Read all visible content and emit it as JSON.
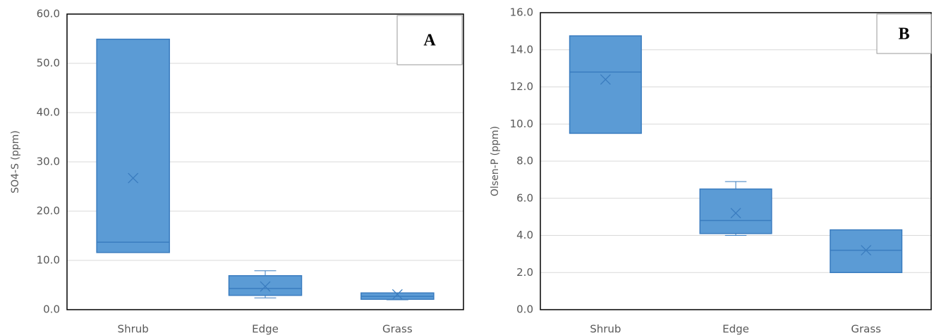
{
  "chart_data": [
    {
      "type": "box",
      "ylabel": "SO4-S (ppm)",
      "annotation": "A",
      "color": "#5b9bd5",
      "grid": true,
      "categories": [
        "Shrub",
        "Edge",
        "Grass"
      ],
      "boxes": [
        {
          "min": 11.6,
          "q1": 11.6,
          "median": 13.7,
          "q3": 54.9,
          "max": 54.9,
          "mean": 26.7
        },
        {
          "min": 2.4,
          "q1": 2.9,
          "median": 4.3,
          "q3": 6.9,
          "max": 7.9,
          "mean": 4.7
        },
        {
          "min": 2.0,
          "q1": 2.1,
          "median": 2.7,
          "q3": 3.4,
          "max": 3.4,
          "mean": 3.1
        }
      ],
      "ylim": [
        0,
        60
      ],
      "yticks": [
        {
          "value": 0,
          "label": "0.0"
        },
        {
          "value": 10,
          "label": "10.0"
        },
        {
          "value": 20,
          "label": "20.0"
        },
        {
          "value": 30,
          "label": "30.0"
        },
        {
          "value": 40,
          "label": "40.0"
        },
        {
          "value": 50,
          "label": "50.0"
        },
        {
          "value": 60,
          "label": "60.0"
        }
      ]
    },
    {
      "type": "box",
      "ylabel": "Olsen-P (ppm)",
      "annotation": "B",
      "color": "#5b9bd5",
      "grid": true,
      "categories": [
        "Shrub",
        "Edge",
        "Grass"
      ],
      "boxes": [
        {
          "min": 9.5,
          "q1": 9.5,
          "median": 12.8,
          "q3": 14.75,
          "max": 14.75,
          "mean": 12.4
        },
        {
          "min": 4.0,
          "q1": 4.1,
          "median": 4.8,
          "q3": 6.5,
          "max": 6.9,
          "mean": 5.2
        },
        {
          "min": 2.0,
          "q1": 2.0,
          "median": 3.2,
          "q3": 4.3,
          "max": 4.3,
          "mean": 3.2
        }
      ],
      "ylim": [
        0,
        16
      ],
      "yticks": [
        {
          "value": 0,
          "label": "0.0"
        },
        {
          "value": 2,
          "label": "2.0"
        },
        {
          "value": 4,
          "label": "4.0"
        },
        {
          "value": 6,
          "label": "6.0"
        },
        {
          "value": 8,
          "label": "8.0"
        },
        {
          "value": 10,
          "label": "10.0"
        },
        {
          "value": 12,
          "label": "12.0"
        },
        {
          "value": 14,
          "label": "14.0"
        },
        {
          "value": 16,
          "label": "16.0"
        }
      ]
    }
  ]
}
